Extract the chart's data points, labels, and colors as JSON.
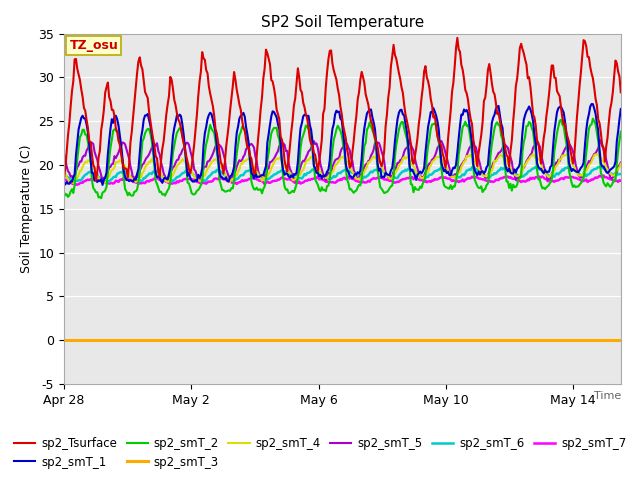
{
  "title": "SP2 Soil Temperature",
  "ylabel": "Soil Temperature (C)",
  "xlabel": "Time",
  "ylim": [
    -5,
    35
  ],
  "xlim_days": [
    0,
    17.5
  ],
  "x_ticks_labels": [
    "Apr 28",
    "May 2",
    "May 6",
    "May 10",
    "May 14"
  ],
  "x_ticks_pos": [
    0,
    4,
    8,
    12,
    16
  ],
  "annotation_text": "TZ_osu",
  "annotation_color": "#cc0000",
  "annotation_bg": "#ffffcc",
  "annotation_border": "#bbaa00",
  "series_colors": {
    "sp2_Tsurface": "#dd0000",
    "sp2_smT_1": "#0000cc",
    "sp2_smT_2": "#00cc00",
    "sp2_smT_3": "#ffaa00",
    "sp2_smT_4": "#dddd00",
    "sp2_smT_5": "#aa00cc",
    "sp2_smT_6": "#00cccc",
    "sp2_smT_7": "#ff00ff"
  },
  "bg_color": "#e8e8e8",
  "fig_bg": "#ffffff",
  "legend_order": [
    "sp2_Tsurface",
    "sp2_smT_1",
    "sp2_smT_2",
    "sp2_smT_3",
    "sp2_smT_4",
    "sp2_smT_5",
    "sp2_smT_6",
    "sp2_smT_7"
  ]
}
